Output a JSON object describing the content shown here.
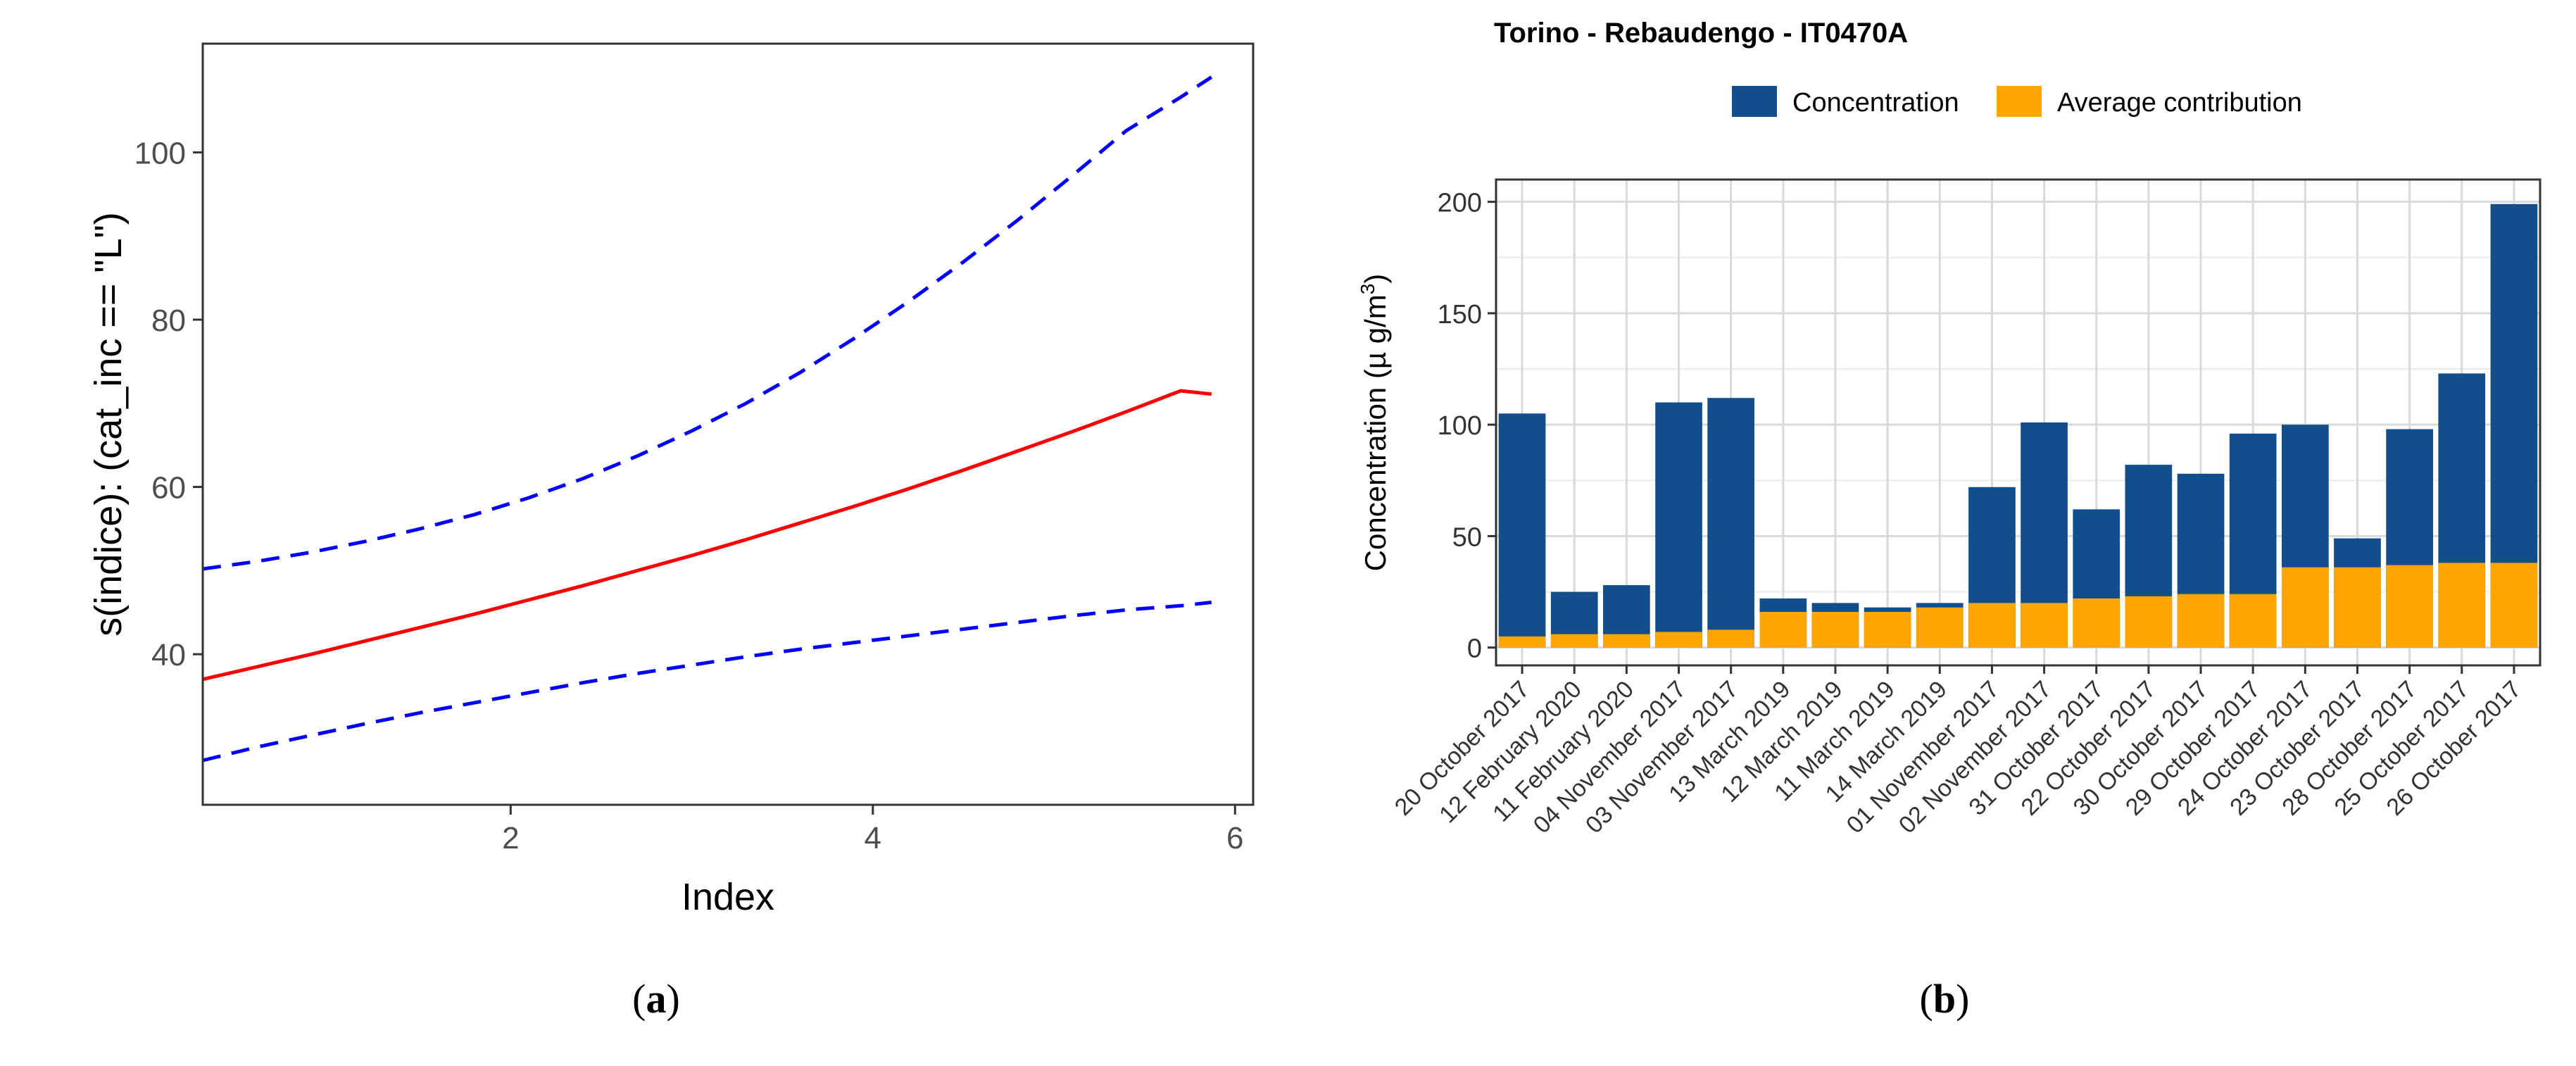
{
  "chart_data": [
    {
      "id": "a",
      "panel_label": "(a)",
      "panel_letter": "a",
      "type": "line",
      "title": "",
      "xlabel": "Index",
      "ylabel": "s(indice): (cat_inc == \"L\")",
      "xlim": [
        0.3,
        6.1
      ],
      "ylim": [
        22,
        113
      ],
      "xticks": [
        2,
        4,
        6
      ],
      "yticks": [
        40,
        60,
        80,
        100
      ],
      "grid": false,
      "colors": {
        "fit": "#ff0000",
        "bounds": "#0000ff",
        "axis": "#333333",
        "ticklabel": "#4d4d4d"
      },
      "series": [
        {
          "name": "fit",
          "style": "solid",
          "x": [
            0.3,
            0.6,
            0.9,
            1.2,
            1.5,
            1.8,
            2.1,
            2.4,
            2.7,
            3.0,
            3.3,
            3.6,
            3.9,
            4.2,
            4.5,
            4.8,
            5.1,
            5.4,
            5.7,
            5.87
          ],
          "y": [
            37.0,
            38.5,
            40.0,
            41.6,
            43.2,
            44.8,
            46.5,
            48.2,
            50.0,
            51.8,
            53.7,
            55.7,
            57.7,
            59.8,
            62.0,
            64.3,
            66.6,
            69.0,
            71.5,
            71.1
          ]
        },
        {
          "name": "upper",
          "style": "dashed",
          "x": [
            0.3,
            0.6,
            0.9,
            1.2,
            1.5,
            1.8,
            2.1,
            2.4,
            2.7,
            3.0,
            3.3,
            3.6,
            3.9,
            4.2,
            4.5,
            4.8,
            5.1,
            5.4,
            5.7,
            5.87
          ],
          "y": [
            50.2,
            51.1,
            52.2,
            53.5,
            55.0,
            56.7,
            58.7,
            61.0,
            63.7,
            66.7,
            70.0,
            73.7,
            77.8,
            82.2,
            86.9,
            91.9,
            97.2,
            102.6,
            106.6,
            109.0
          ]
        },
        {
          "name": "lower",
          "style": "dashed",
          "x": [
            0.3,
            0.6,
            0.9,
            1.2,
            1.5,
            1.8,
            2.1,
            2.4,
            2.7,
            3.0,
            3.3,
            3.6,
            3.9,
            4.2,
            4.5,
            4.8,
            5.1,
            5.4,
            5.7,
            5.87
          ],
          "y": [
            27.3,
            28.9,
            30.3,
            31.7,
            33.0,
            34.2,
            35.4,
            36.6,
            37.7,
            38.7,
            39.7,
            40.6,
            41.4,
            42.2,
            43.0,
            43.8,
            44.6,
            45.3,
            45.8,
            46.2
          ]
        }
      ]
    },
    {
      "id": "b",
      "panel_label": "(b)",
      "panel_letter": "b",
      "type": "bar",
      "title": "Torino - Rebaudengo - IT0470A",
      "xlabel": "",
      "ylabel": "Concentration (µ g/m",
      "ylabel_superscript": "3",
      "ylabel_close": ")",
      "ylim": [
        -8,
        210
      ],
      "yticks": [
        0,
        50,
        100,
        150,
        200
      ],
      "grid": true,
      "legend_position": "top",
      "categories": [
        "20 October 2017",
        "12 February 2020",
        "11 February 2020",
        "04 November 2017",
        "03 November 2017",
        "13 March 2019",
        "12 March 2019",
        "11 March 2019",
        "14 March 2019",
        "01 November 2017",
        "02 November 2017",
        "31 October 2017",
        "22 October 2017",
        "30 October 2017",
        "29 October 2017",
        "24 October 2017",
        "23 October 2017",
        "28 October 2017",
        "25 October 2017",
        "26 October 2017"
      ],
      "series": [
        {
          "name": "Concentration",
          "color": "#124e8c",
          "values": [
            105,
            25,
            28,
            110,
            112,
            22,
            20,
            18,
            20,
            72,
            101,
            62,
            82,
            78,
            96,
            100,
            49,
            98,
            123,
            199
          ]
        },
        {
          "name": "Average contribution",
          "color": "#ffa500",
          "values": [
            5,
            6,
            6,
            7,
            8,
            16,
            16,
            16,
            18,
            20,
            20,
            22,
            23,
            24,
            24,
            36,
            36,
            37,
            38,
            38
          ]
        }
      ],
      "colors": {
        "grid": "#d9d9d9",
        "panel_border": "#333333",
        "ticklabel": "#333333"
      }
    }
  ]
}
